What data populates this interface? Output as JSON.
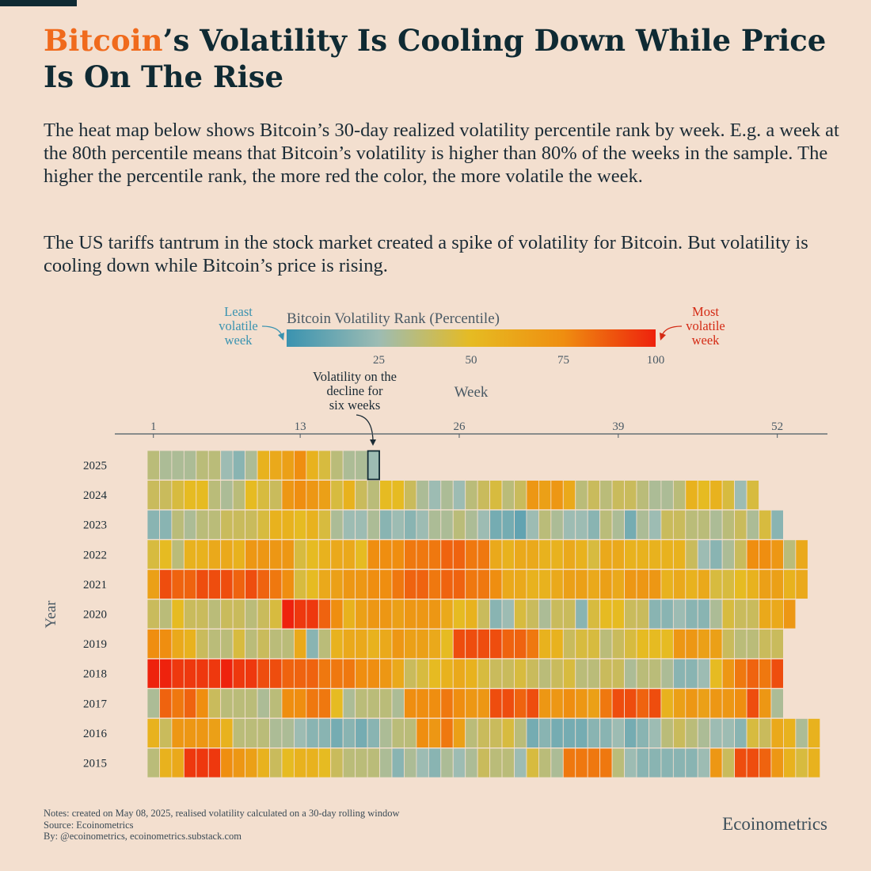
{
  "title": {
    "highlight": "Bitcoin",
    "rest": "’s Volatility Is Cooling Down While Price Is On The Rise"
  },
  "description": {
    "paragraph1": "The heat map below shows Bitcoin’s 30-day realized volatility percentile rank by week. E.g. a week at the 80th percentile means that Bitcoin’s volatility is higher than 80% of the weeks in the sample. The higher the percentile rank, the more red the color, the more volatile the week.",
    "paragraph2": "The US tariffs tantrum in the stock market created a spike of volatility for Bitcoin. But volatility is cooling down while Bitcoin’s price is rising."
  },
  "notes": {
    "line1": "Notes: created on May 08, 2025, realised volatility calculated on a 30-day rolling window",
    "line2": "Source: Ecoinometrics",
    "line3": "By: @ecoinometrics, ecoinometrics.substack.com"
  },
  "brand": "Ecoinometrics",
  "colors": {
    "title_highlight": "#f06a1c",
    "least_label": "#3a93b0",
    "most_label": "#d42a14"
  },
  "chart_data": {
    "type": "heatmap",
    "legend": {
      "title": "Bitcoin Volatility Rank (Percentile)",
      "ticks": [
        "25",
        "50",
        "75",
        "100"
      ],
      "least_label": [
        "Least",
        "volatile",
        "week"
      ],
      "most_label": [
        "Most",
        "volatile",
        "week"
      ]
    },
    "xlabel": "Week",
    "ylabel": "Year",
    "x_ticks": [
      "1",
      "13",
      "26",
      "39",
      "52"
    ],
    "annotation": {
      "text": [
        "Volatility  on the",
        "decline for",
        "six weeks"
      ],
      "year": "2025",
      "week": 19
    },
    "years": [
      "2025",
      "2024",
      "2023",
      "2022",
      "2021",
      "2020",
      "2019",
      "2018",
      "2017",
      "2016",
      "2015"
    ],
    "values": [
      [
        35,
        30,
        30,
        30,
        35,
        35,
        25,
        20,
        30,
        55,
        60,
        65,
        75,
        55,
        45,
        35,
        30,
        30,
        25
      ],
      [
        40,
        40,
        45,
        50,
        50,
        35,
        30,
        35,
        50,
        45,
        40,
        70,
        75,
        70,
        65,
        45,
        55,
        40,
        35,
        50,
        50,
        40,
        30,
        25,
        30,
        25,
        35,
        40,
        45,
        35,
        40,
        70,
        65,
        70,
        60,
        35,
        40,
        35,
        40,
        40,
        35,
        30,
        30,
        35,
        55,
        50,
        55,
        45,
        25,
        45
      ],
      [
        20,
        20,
        35,
        30,
        35,
        35,
        40,
        40,
        40,
        45,
        55,
        55,
        50,
        55,
        45,
        30,
        25,
        25,
        30,
        20,
        25,
        20,
        25,
        30,
        30,
        35,
        30,
        25,
        15,
        15,
        10,
        25,
        35,
        30,
        25,
        25,
        20,
        35,
        30,
        15,
        30,
        25,
        40,
        40,
        35,
        35,
        30,
        35,
        40,
        30,
        45,
        20
      ],
      [
        45,
        50,
        35,
        55,
        55,
        60,
        60,
        55,
        70,
        70,
        70,
        70,
        45,
        50,
        55,
        60,
        60,
        50,
        75,
        75,
        75,
        80,
        80,
        80,
        85,
        85,
        80,
        80,
        60,
        55,
        60,
        60,
        55,
        55,
        60,
        55,
        45,
        60,
        60,
        55,
        55,
        55,
        55,
        55,
        40,
        25,
        20,
        30,
        40,
        75,
        75,
        70,
        35,
        60
      ],
      [
        65,
        90,
        85,
        85,
        90,
        90,
        90,
        85,
        90,
        85,
        80,
        75,
        45,
        50,
        60,
        65,
        70,
        70,
        75,
        75,
        80,
        85,
        85,
        80,
        85,
        85,
        80,
        80,
        75,
        60,
        60,
        55,
        55,
        60,
        65,
        65,
        60,
        65,
        60,
        70,
        70,
        70,
        55,
        60,
        55,
        60,
        45,
        45,
        50,
        55,
        65,
        65,
        55,
        60
      ],
      [
        40,
        35,
        50,
        40,
        40,
        35,
        40,
        40,
        35,
        40,
        45,
        100,
        95,
        95,
        85,
        75,
        55,
        65,
        70,
        70,
        65,
        70,
        70,
        70,
        60,
        50,
        55,
        40,
        20,
        25,
        45,
        40,
        30,
        40,
        40,
        20,
        45,
        50,
        50,
        40,
        40,
        20,
        20,
        25,
        20,
        20,
        30,
        45,
        40,
        40,
        60,
        60,
        70
      ],
      [
        75,
        75,
        60,
        55,
        40,
        35,
        35,
        45,
        35,
        40,
        35,
        35,
        60,
        20,
        35,
        55,
        60,
        60,
        55,
        60,
        70,
        65,
        65,
        60,
        50,
        90,
        90,
        90,
        90,
        85,
        85,
        80,
        55,
        55,
        40,
        45,
        45,
        35,
        40,
        45,
        50,
        50,
        50,
        70,
        70,
        65,
        65,
        40,
        35,
        35,
        40,
        40
      ],
      [
        100,
        100,
        95,
        95,
        95,
        95,
        100,
        95,
        95,
        90,
        90,
        85,
        85,
        85,
        80,
        80,
        80,
        75,
        75,
        70,
        60,
        40,
        45,
        50,
        55,
        60,
        55,
        45,
        40,
        40,
        45,
        40,
        35,
        40,
        45,
        35,
        35,
        40,
        40,
        30,
        35,
        35,
        30,
        20,
        20,
        25,
        50,
        70,
        80,
        85,
        80,
        90
      ],
      [
        30,
        85,
        80,
        85,
        75,
        40,
        35,
        35,
        35,
        30,
        35,
        75,
        75,
        80,
        80,
        50,
        30,
        35,
        35,
        35,
        30,
        75,
        75,
        75,
        80,
        75,
        70,
        70,
        90,
        90,
        85,
        90,
        70,
        70,
        75,
        70,
        65,
        80,
        90,
        90,
        85,
        90,
        55,
        65,
        70,
        65,
        70,
        70,
        75,
        90,
        70,
        30
      ],
      [
        55,
        40,
        70,
        70,
        70,
        65,
        55,
        35,
        35,
        35,
        30,
        30,
        25,
        20,
        20,
        15,
        20,
        15,
        20,
        30,
        35,
        35,
        75,
        70,
        80,
        65,
        35,
        40,
        40,
        45,
        35,
        15,
        20,
        15,
        15,
        15,
        20,
        20,
        25,
        15,
        20,
        25,
        35,
        40,
        35,
        30,
        25,
        25,
        20,
        45,
        40,
        60,
        55,
        30,
        55
      ],
      [
        35,
        55,
        60,
        95,
        95,
        95,
        75,
        70,
        65,
        55,
        40,
        50,
        55,
        55,
        50,
        40,
        35,
        35,
        35,
        30,
        20,
        30,
        25,
        20,
        30,
        25,
        30,
        40,
        35,
        35,
        25,
        45,
        35,
        30,
        80,
        80,
        80,
        80,
        35,
        25,
        20,
        20,
        20,
        20,
        20,
        25,
        70,
        40,
        90,
        90,
        85,
        70,
        55,
        45,
        55
      ]
    ]
  }
}
